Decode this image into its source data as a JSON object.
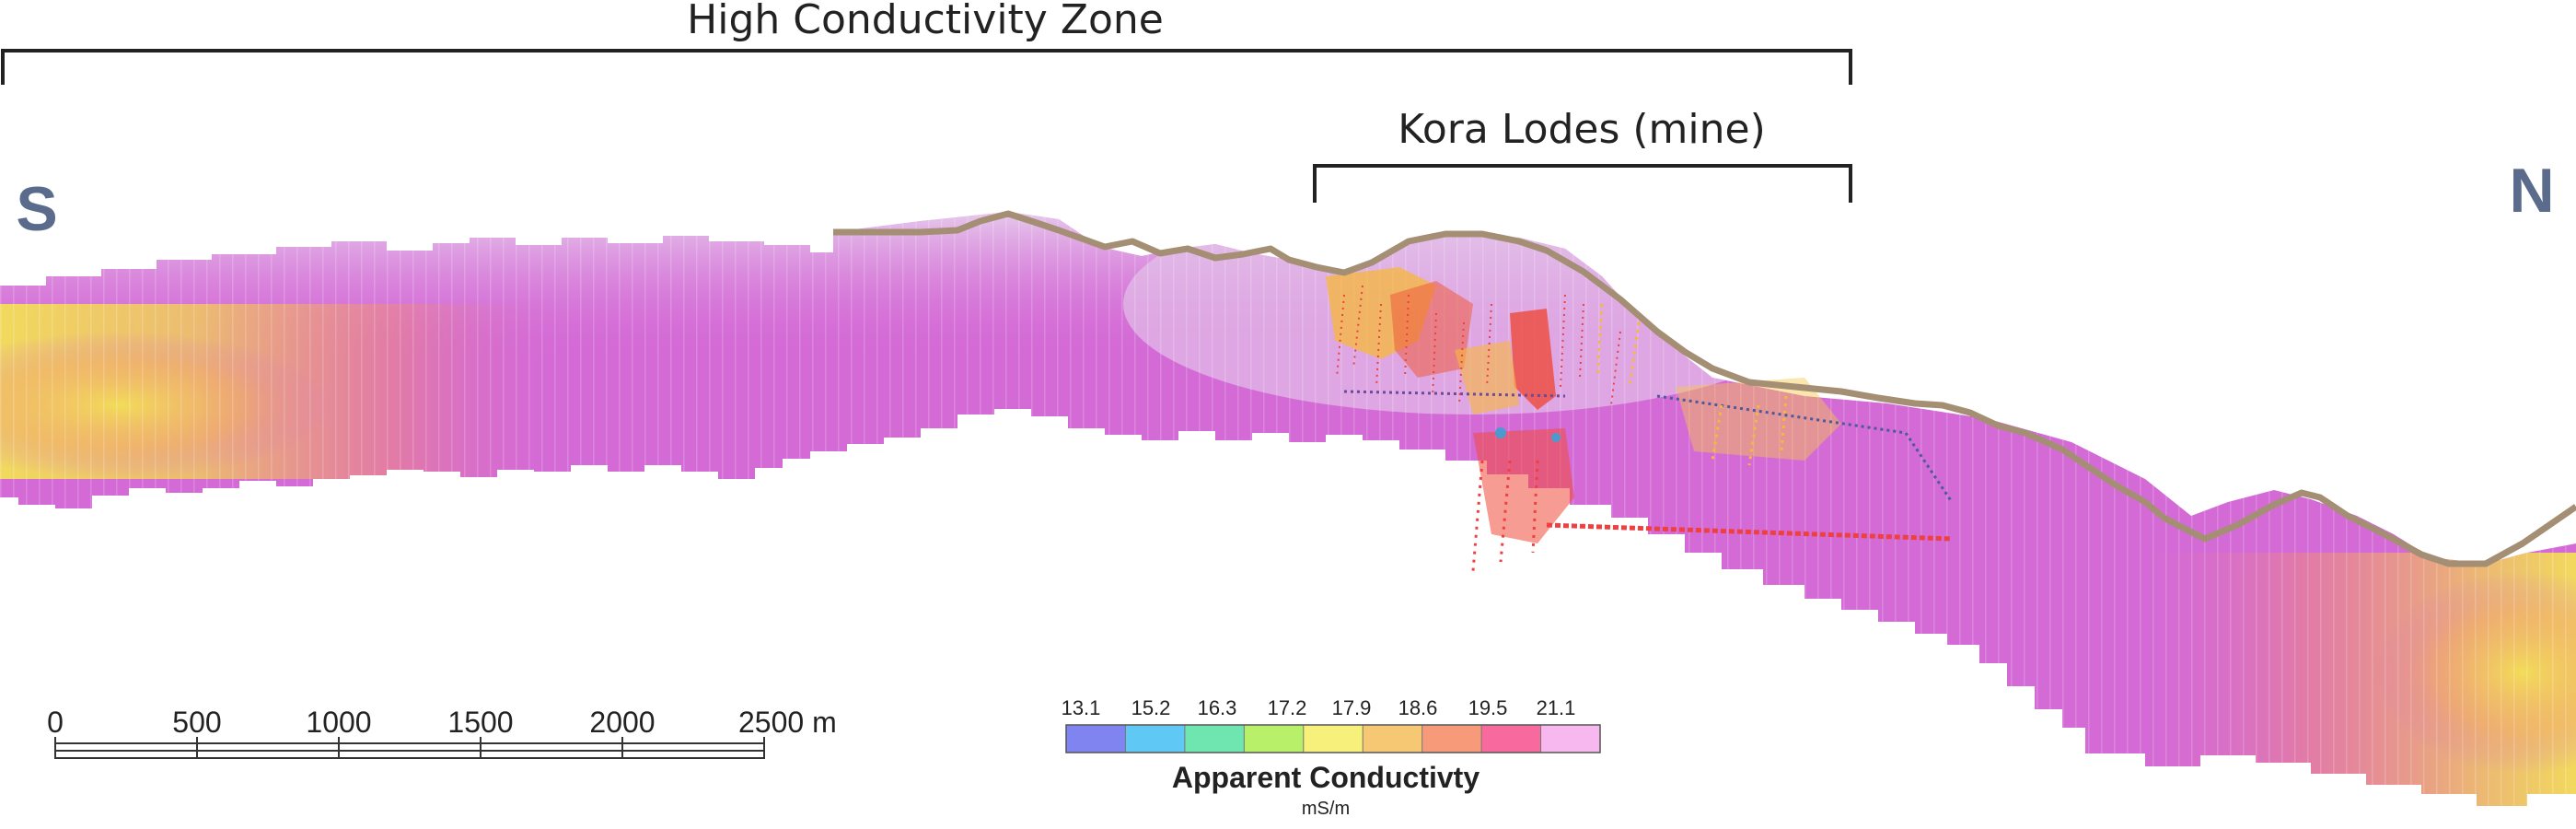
{
  "annotations": {
    "zone_label": "High Conductivity Zone",
    "mine_label": "Kora Lodes (mine)",
    "south_label": "S",
    "north_label": "N"
  },
  "scale_bar": {
    "ticks": [
      "0",
      "500",
      "1000",
      "1500",
      "2000",
      "2500 m"
    ]
  },
  "legend": {
    "values": [
      "13.1",
      "15.2",
      "16.3",
      "17.2",
      "17.9",
      "18.6",
      "19.5",
      "21.1"
    ],
    "title": "Apparent Conductivty",
    "units": "mS/m",
    "colors": [
      "#7f84f0",
      "#5fc8f4",
      "#6fe6b0",
      "#b8f06a",
      "#f7f07a",
      "#f7c873",
      "#f79a7a",
      "#f8699e",
      "#f7b8f0"
    ]
  },
  "colors": {
    "section_main": "#d46ad6",
    "section_light": "#dcb4e2",
    "anomaly": "#f5d04a",
    "surface": "#a48f74",
    "workings": "#ee4040",
    "workings_alt": "#f6b83a",
    "direction": "#5a6b8c"
  }
}
